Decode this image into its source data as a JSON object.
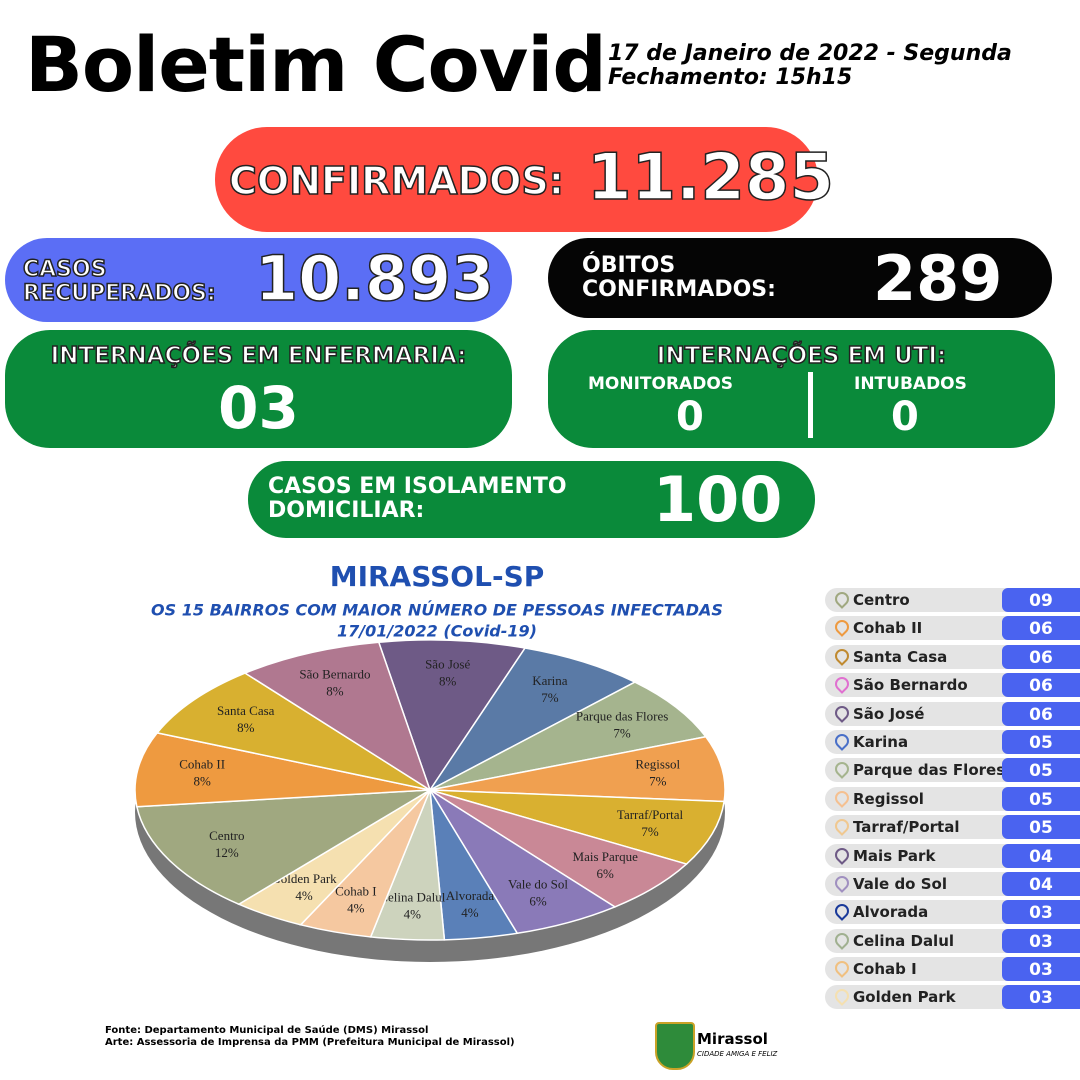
{
  "header": {
    "title": "Boletim Covid",
    "date": "17 de Janeiro de 2022 - Segunda",
    "closing": "Fechamento: 15h15"
  },
  "stats": {
    "confirmed": {
      "label": "CONFIRMADOS:",
      "value": "11.285"
    },
    "recovered": {
      "label": [
        "CASOS",
        "RECUPERADOS:"
      ],
      "value": "10.893"
    },
    "deaths": {
      "label": [
        "ÓBITOS",
        "CONFIRMADOS:"
      ],
      "value": "289"
    },
    "ward": {
      "label": "INTERNAÇÕES EM ENFERMARIA:",
      "value": "03"
    },
    "icu": {
      "label": "INTERNAÇÕES EM UTI:",
      "monitored_label": "MONITORADOS",
      "monitored": "0",
      "intubated_label": "INTUBADOS",
      "intubated": "0"
    },
    "isolation": {
      "label": [
        "CASOS EM ISOLAMENTO",
        "DOMICILIAR:"
      ],
      "value": "100"
    }
  },
  "chart_data": {
    "type": "pie",
    "title": "MIRASSOL-SP",
    "subtitle": "OS 15 BAIRROS COM MAIOR NÚMERO DE PESSOAS INFECTADAS",
    "date": "17/01/2022 (Covid-19)",
    "categories": [
      "São José",
      "Karina",
      "Parque das Flores",
      "Regissol",
      "Tarraf/Portal",
      "Mais Parque",
      "Vale do Sol",
      "Alvorada",
      "Celina Dalul",
      "Cohab I",
      "Golden Park",
      "Centro",
      "Cohab II",
      "Santa Casa",
      "São Bernardo"
    ],
    "values": [
      8,
      7,
      7,
      7,
      7,
      6,
      6,
      4,
      4,
      4,
      4,
      12,
      8,
      8,
      8
    ],
    "value_labels": [
      "8%",
      "7%",
      "7%",
      "7%",
      "7%",
      "6%",
      "6%",
      "4%",
      "4%",
      "4%",
      "4%",
      "12%",
      "8%",
      "8%",
      "8%"
    ],
    "colors": [
      "#6e5a86",
      "#5a7aa6",
      "#a5b48e",
      "#f0a050",
      "#d9b030",
      "#c98896",
      "#8a7ab8",
      "#5a80b8",
      "#cdd3bd",
      "#f5c8a0",
      "#f5e0b0",
      "#a0a880",
      "#ee9a40",
      "#d8b030",
      "#b07890"
    ]
  },
  "neighborhoods": {
    "rows": [
      [
        "Centro",
        "09"
      ],
      [
        "Cohab II",
        "06"
      ],
      [
        "Santa Casa",
        "06"
      ],
      [
        "São Bernardo",
        "06"
      ],
      [
        "São José",
        "06"
      ],
      [
        "Karina",
        "05"
      ],
      [
        "Parque das Flores",
        "05"
      ],
      [
        "Regissol",
        "05"
      ],
      [
        "Tarraf/Portal",
        "05"
      ],
      [
        "Mais Park",
        "04"
      ],
      [
        "Vale do Sol",
        "04"
      ],
      [
        "Alvorada",
        "03"
      ],
      [
        "Celina Dalul",
        "03"
      ],
      [
        "Cohab I",
        "03"
      ],
      [
        "Golden Park",
        "03"
      ]
    ]
  },
  "footer": {
    "source": "Fonte: Departamento Municipal de Saúde (DMS) Mirassol",
    "art": "Arte: Assessoria de Imprensa da PMM (Prefeitura Municipal de Mirassol)",
    "brand": "Mirassol",
    "slogan": "CIDADE AMIGA E FELIZ"
  }
}
